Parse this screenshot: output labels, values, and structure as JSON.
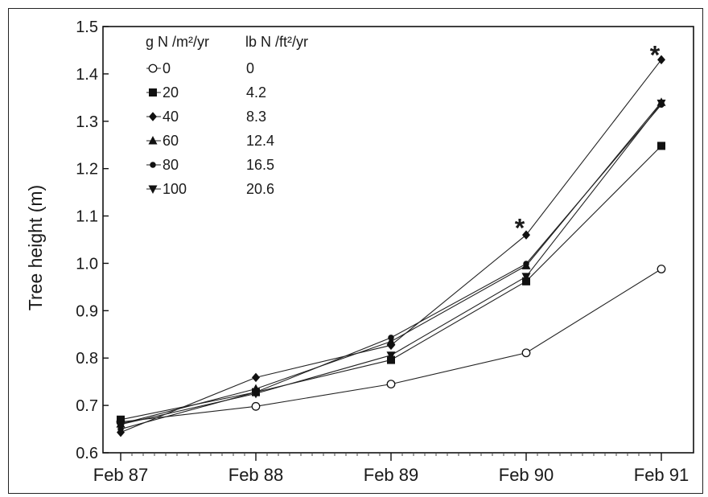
{
  "chart_data": {
    "type": "line",
    "ylabel": "Tree height (m)",
    "xlabel": "",
    "x": [
      "Feb 87",
      "Feb 88",
      "Feb 89",
      "Feb 90",
      "Feb 91"
    ],
    "ylim": [
      0.6,
      1.5
    ],
    "yticks": [
      "0.6",
      "0.7",
      "0.8",
      "0.9",
      "1.0",
      "1.1",
      "1.2",
      "1.3",
      "1.4",
      "1.5"
    ],
    "legend": {
      "header_metric": "g N /m²/yr",
      "header_imperial": "lb N /ft²/yr",
      "placement": "top-left"
    },
    "series": [
      {
        "name": "0",
        "imperial": "0",
        "marker": "open-circle",
        "values": [
          0.665,
          0.698,
          0.745,
          0.811,
          0.988
        ]
      },
      {
        "name": "20",
        "imperial": "4.2",
        "marker": "square",
        "values": [
          0.67,
          0.728,
          0.796,
          0.962,
          1.248
        ]
      },
      {
        "name": "40",
        "imperial": "8.3",
        "marker": "diamond",
        "values": [
          0.643,
          0.759,
          0.827,
          1.06,
          1.43
        ]
      },
      {
        "name": "60",
        "imperial": "12.4",
        "marker": "triangle-up",
        "values": [
          0.661,
          0.735,
          0.835,
          0.995,
          1.34
        ]
      },
      {
        "name": "80",
        "imperial": "16.5",
        "marker": "dot",
        "values": [
          0.65,
          0.728,
          0.843,
          0.999,
          1.335
        ]
      },
      {
        "name": "100",
        "imperial": "20.6",
        "marker": "triangle-down",
        "values": [
          0.66,
          0.725,
          0.806,
          0.972,
          1.338
        ]
      }
    ],
    "annotations": [
      {
        "text": "*",
        "x": "Feb 90",
        "y": 1.08
      },
      {
        "text": "*",
        "x": "Feb 91",
        "y": 1.445
      }
    ],
    "grid": false
  }
}
